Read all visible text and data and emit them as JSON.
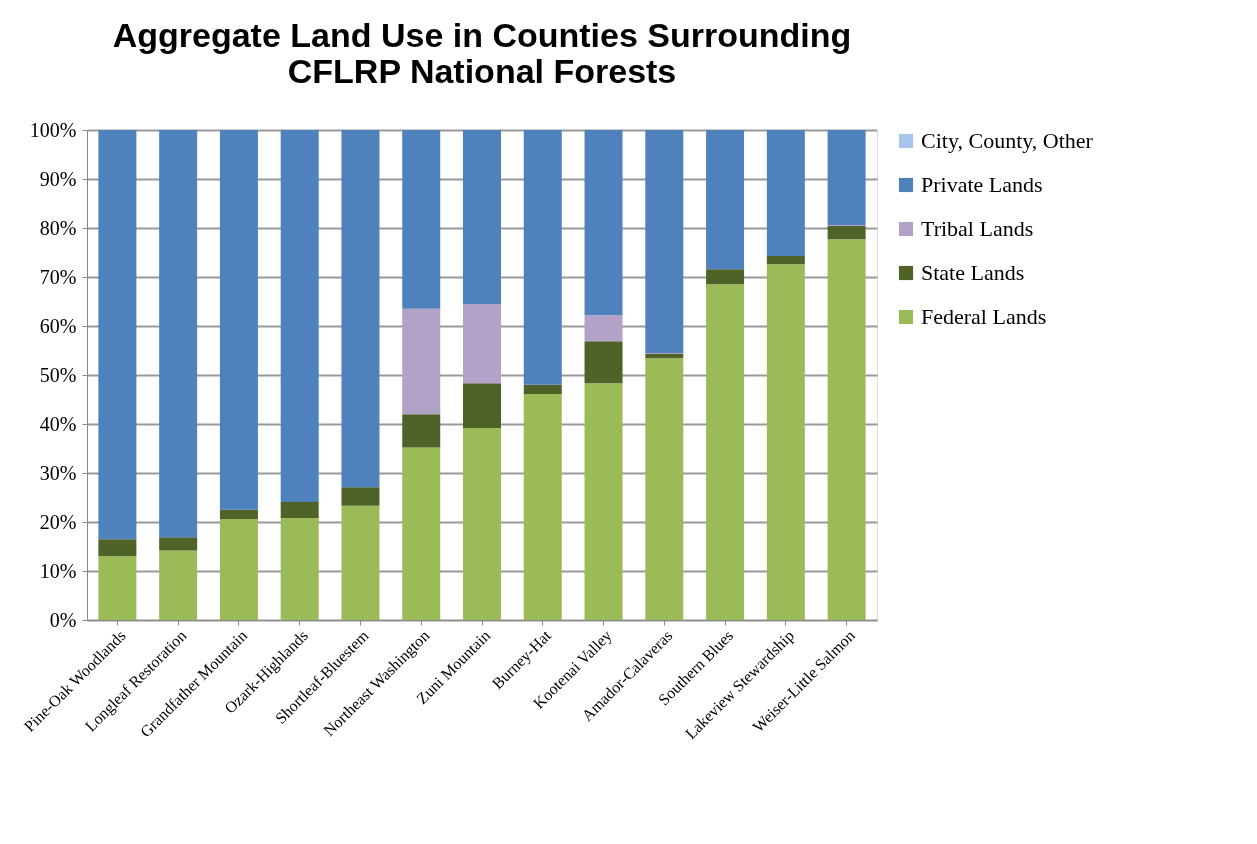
{
  "chart_data": {
    "type": "bar",
    "title": [
      "Aggregate Land Use in Counties Surrounding",
      "CFLRP National Forests"
    ],
    "categories": [
      "Pine-Oak Woodlands",
      "Longleaf Restoration",
      "Grandfather Mountain",
      "Ozark-Highlands",
      "Shortleaf-Bluestem",
      "Northeast Washington",
      "Zuni Mountain",
      "Burney-Hat",
      "Kootenai Valley",
      "Amador-Calaveras",
      "Southern Blues",
      "Lakeview Stewardship",
      "Weiser-Little Salmon"
    ],
    "stacked": true,
    "series": [
      {
        "name": "Federal Lands",
        "color": "#9bbb59",
        "values": [
          13.0,
          14.2,
          20.6,
          20.8,
          23.3,
          35.2,
          39.2,
          46.1,
          48.3,
          53.4,
          68.5,
          72.6,
          77.7
        ]
      },
      {
        "name": "State Lands",
        "color": "#4f6228",
        "values": [
          3.5,
          2.7,
          1.9,
          3.3,
          3.8,
          6.8,
          9.1,
          1.9,
          8.6,
          0.9,
          3.1,
          1.7,
          2.7
        ]
      },
      {
        "name": "Tribal Lands",
        "color": "#b3a2c7",
        "values": [
          0,
          0,
          0,
          0,
          0,
          21.5,
          16.2,
          0,
          5.3,
          0.2,
          0,
          0,
          0.2
        ]
      },
      {
        "name": "Private Lands",
        "color": "#4f81bd",
        "values": [
          83.5,
          83.1,
          77.5,
          75.9,
          72.9,
          36.5,
          35.5,
          52.0,
          37.8,
          45.5,
          28.4,
          25.7,
          19.4
        ]
      },
      {
        "name": "City, County, Other",
        "color": "#a9c4eb",
        "values": [
          0,
          0,
          0,
          0,
          0,
          0,
          0,
          0,
          0,
          0,
          0,
          0,
          0
        ]
      }
    ],
    "ylim": [
      0,
      100
    ],
    "yticks": [
      {
        "value": 0,
        "label": "0%"
      },
      {
        "value": 10,
        "label": "10%"
      },
      {
        "value": 20,
        "label": "20%"
      },
      {
        "value": 30,
        "label": "30%"
      },
      {
        "value": 40,
        "label": "40%"
      },
      {
        "value": 50,
        "label": "50%"
      },
      {
        "value": 60,
        "label": "60%"
      },
      {
        "value": 70,
        "label": "70%"
      },
      {
        "value": 80,
        "label": "80%"
      },
      {
        "value": 90,
        "label": "90%"
      },
      {
        "value": 100,
        "label": "100%"
      }
    ],
    "grid": "y",
    "legend": "right"
  }
}
